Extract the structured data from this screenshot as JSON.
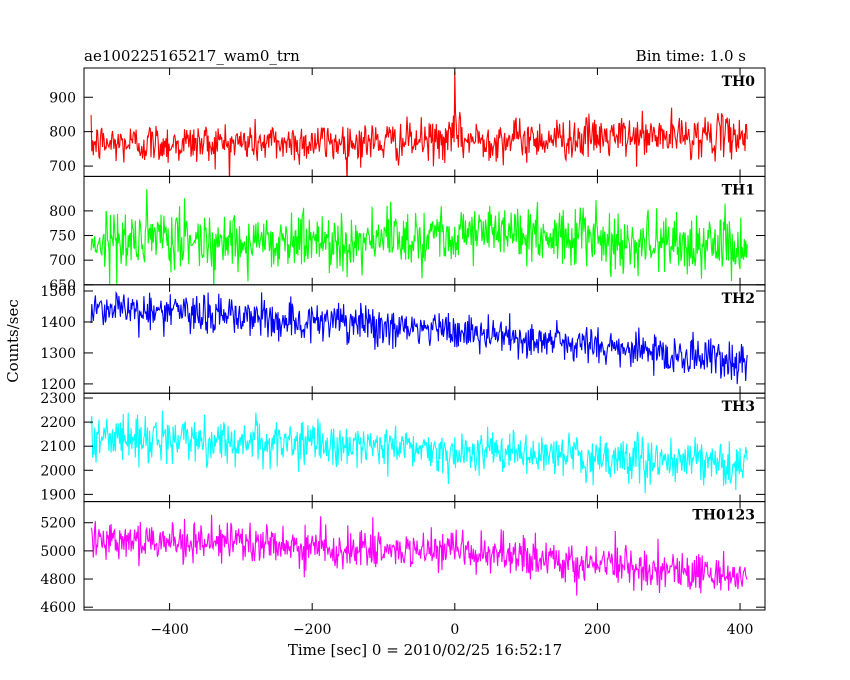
{
  "header": {
    "title": "ae100225165217_wam0_trn",
    "bin_time": "Bin time: 1.0 s"
  },
  "chart_data": {
    "type": "line",
    "title": "ae100225165217_wam0_trn",
    "xlabel": "Time [sec] 0 = 2010/02/25 16:52:17",
    "ylabel": "Counts/sec",
    "xlim": [
      -520,
      435
    ],
    "x_ticks": [
      -400,
      -200,
      0,
      200,
      400
    ],
    "x_tick_labels": [
      "−400",
      "−200",
      "0",
      "200",
      "400"
    ],
    "x_range": [
      -510,
      410
    ],
    "bin_seconds": 1.0,
    "grid": false,
    "panels": [
      {
        "label": "TH0",
        "color": "#ff0000",
        "ylim": [
          670,
          985
        ],
        "yticks": [
          700,
          800,
          900
        ],
        "trend": [
          [
            -510,
            765
          ],
          [
            -100,
            770
          ],
          [
            0,
            775
          ],
          [
            410,
            790
          ]
        ],
        "noise": 30,
        "features": [
          {
            "x": 0,
            "value": 975,
            "note": "spike"
          }
        ]
      },
      {
        "label": "TH1",
        "color": "#00ff00",
        "ylim": [
          650,
          870
        ],
        "yticks": [
          650,
          700,
          750,
          800
        ],
        "trend": [
          [
            -510,
            740
          ],
          [
            -100,
            740
          ],
          [
            0,
            760
          ],
          [
            410,
            725
          ]
        ],
        "noise": 30,
        "features": []
      },
      {
        "label": "TH2",
        "color": "#0000ff",
        "ylim": [
          1170,
          1520
        ],
        "yticks": [
          1200,
          1300,
          1400,
          1500
        ],
        "trend": [
          [
            -510,
            1450
          ],
          [
            -100,
            1385
          ],
          [
            0,
            1370
          ],
          [
            410,
            1270
          ]
        ],
        "noise": 32,
        "features": []
      },
      {
        "label": "TH3",
        "color": "#00ffff",
        "ylim": [
          1870,
          2320
        ],
        "yticks": [
          1900,
          2000,
          2100,
          2200,
          2300
        ],
        "trend": [
          [
            -510,
            2140
          ],
          [
            -100,
            2100
          ],
          [
            0,
            2080
          ],
          [
            410,
            2020
          ]
        ],
        "noise": 45,
        "features": []
      },
      {
        "label": "TH0123",
        "color": "#ff00ff",
        "ylim": [
          4580,
          5350
        ],
        "yticks": [
          4600,
          4800,
          5000,
          5200
        ],
        "trend": [
          [
            -510,
            5100
          ],
          [
            -100,
            5000
          ],
          [
            0,
            4990
          ],
          [
            410,
            4820
          ]
        ],
        "noise": 70,
        "features": []
      }
    ]
  }
}
